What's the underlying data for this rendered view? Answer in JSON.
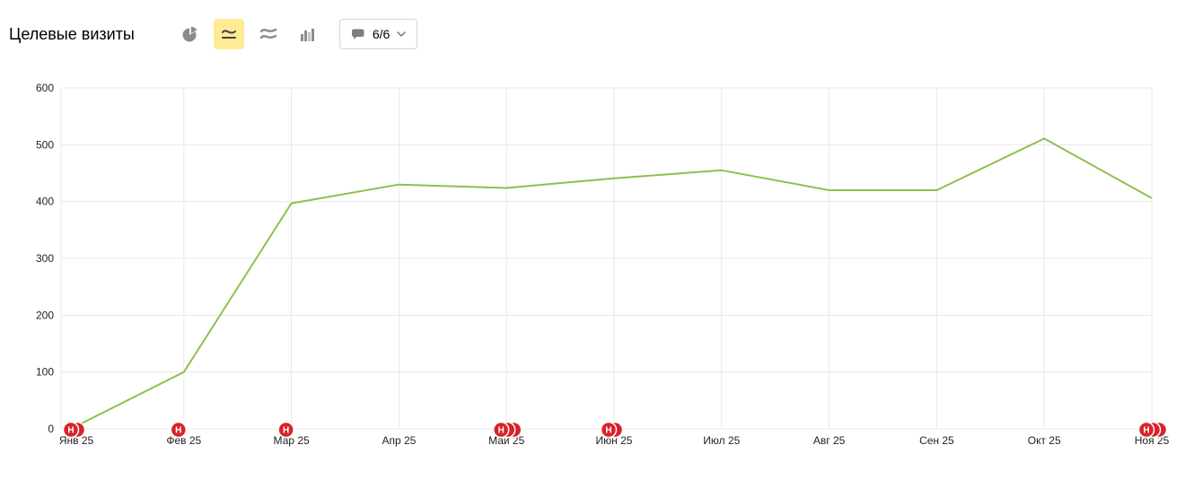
{
  "header": {
    "title": "Целевые визиты",
    "chart_type_switcher": [
      {
        "name": "pie",
        "icon": "pie-chart-icon",
        "selected": false
      },
      {
        "name": "line",
        "icon": "line-chart-icon",
        "selected": true
      },
      {
        "name": "area",
        "icon": "area-chart-icon",
        "selected": false
      },
      {
        "name": "columns",
        "icon": "column-chart-icon",
        "selected": false
      }
    ],
    "comments": {
      "label": "6/6",
      "icon": "comment-bubble-icon"
    }
  },
  "colors": {
    "line": "#8ec04f",
    "grid": "#e8e8e8",
    "badge": "#d8232a",
    "selected_button_bg": "#ffeb94",
    "toolbar_icon": "#8c8c8c"
  },
  "chart_data": {
    "type": "line",
    "title": "Целевые визиты",
    "categories": [
      "Янв 25",
      "Фев 25",
      "Мар 25",
      "Апр 25",
      "Май 25",
      "Июн 25",
      "Июл 25",
      "Авг 25",
      "Сен 25",
      "Окт 25",
      "Ноя 25"
    ],
    "values": [
      5,
      100,
      397,
      430,
      424,
      441,
      455,
      420,
      420,
      511,
      406
    ],
    "xlabel": "",
    "ylabel": "",
    "ylim": [
      0,
      600
    ],
    "yticks": [
      0,
      100,
      200,
      300,
      400,
      500,
      600
    ],
    "grid": true,
    "legend": "none",
    "annotation_markers": [
      {
        "category": "Янв 25",
        "label": "Н",
        "count": 2
      },
      {
        "category": "Фев 25",
        "label": "Н",
        "count": 1
      },
      {
        "category": "Мар 25",
        "label": "Н",
        "count": 1
      },
      {
        "category": "Май 25",
        "label": "Н",
        "count": 3
      },
      {
        "category": "Июн 25",
        "label": "Н",
        "count": 2
      },
      {
        "category": "Ноя 25",
        "label": "Н",
        "count": 3
      }
    ]
  }
}
